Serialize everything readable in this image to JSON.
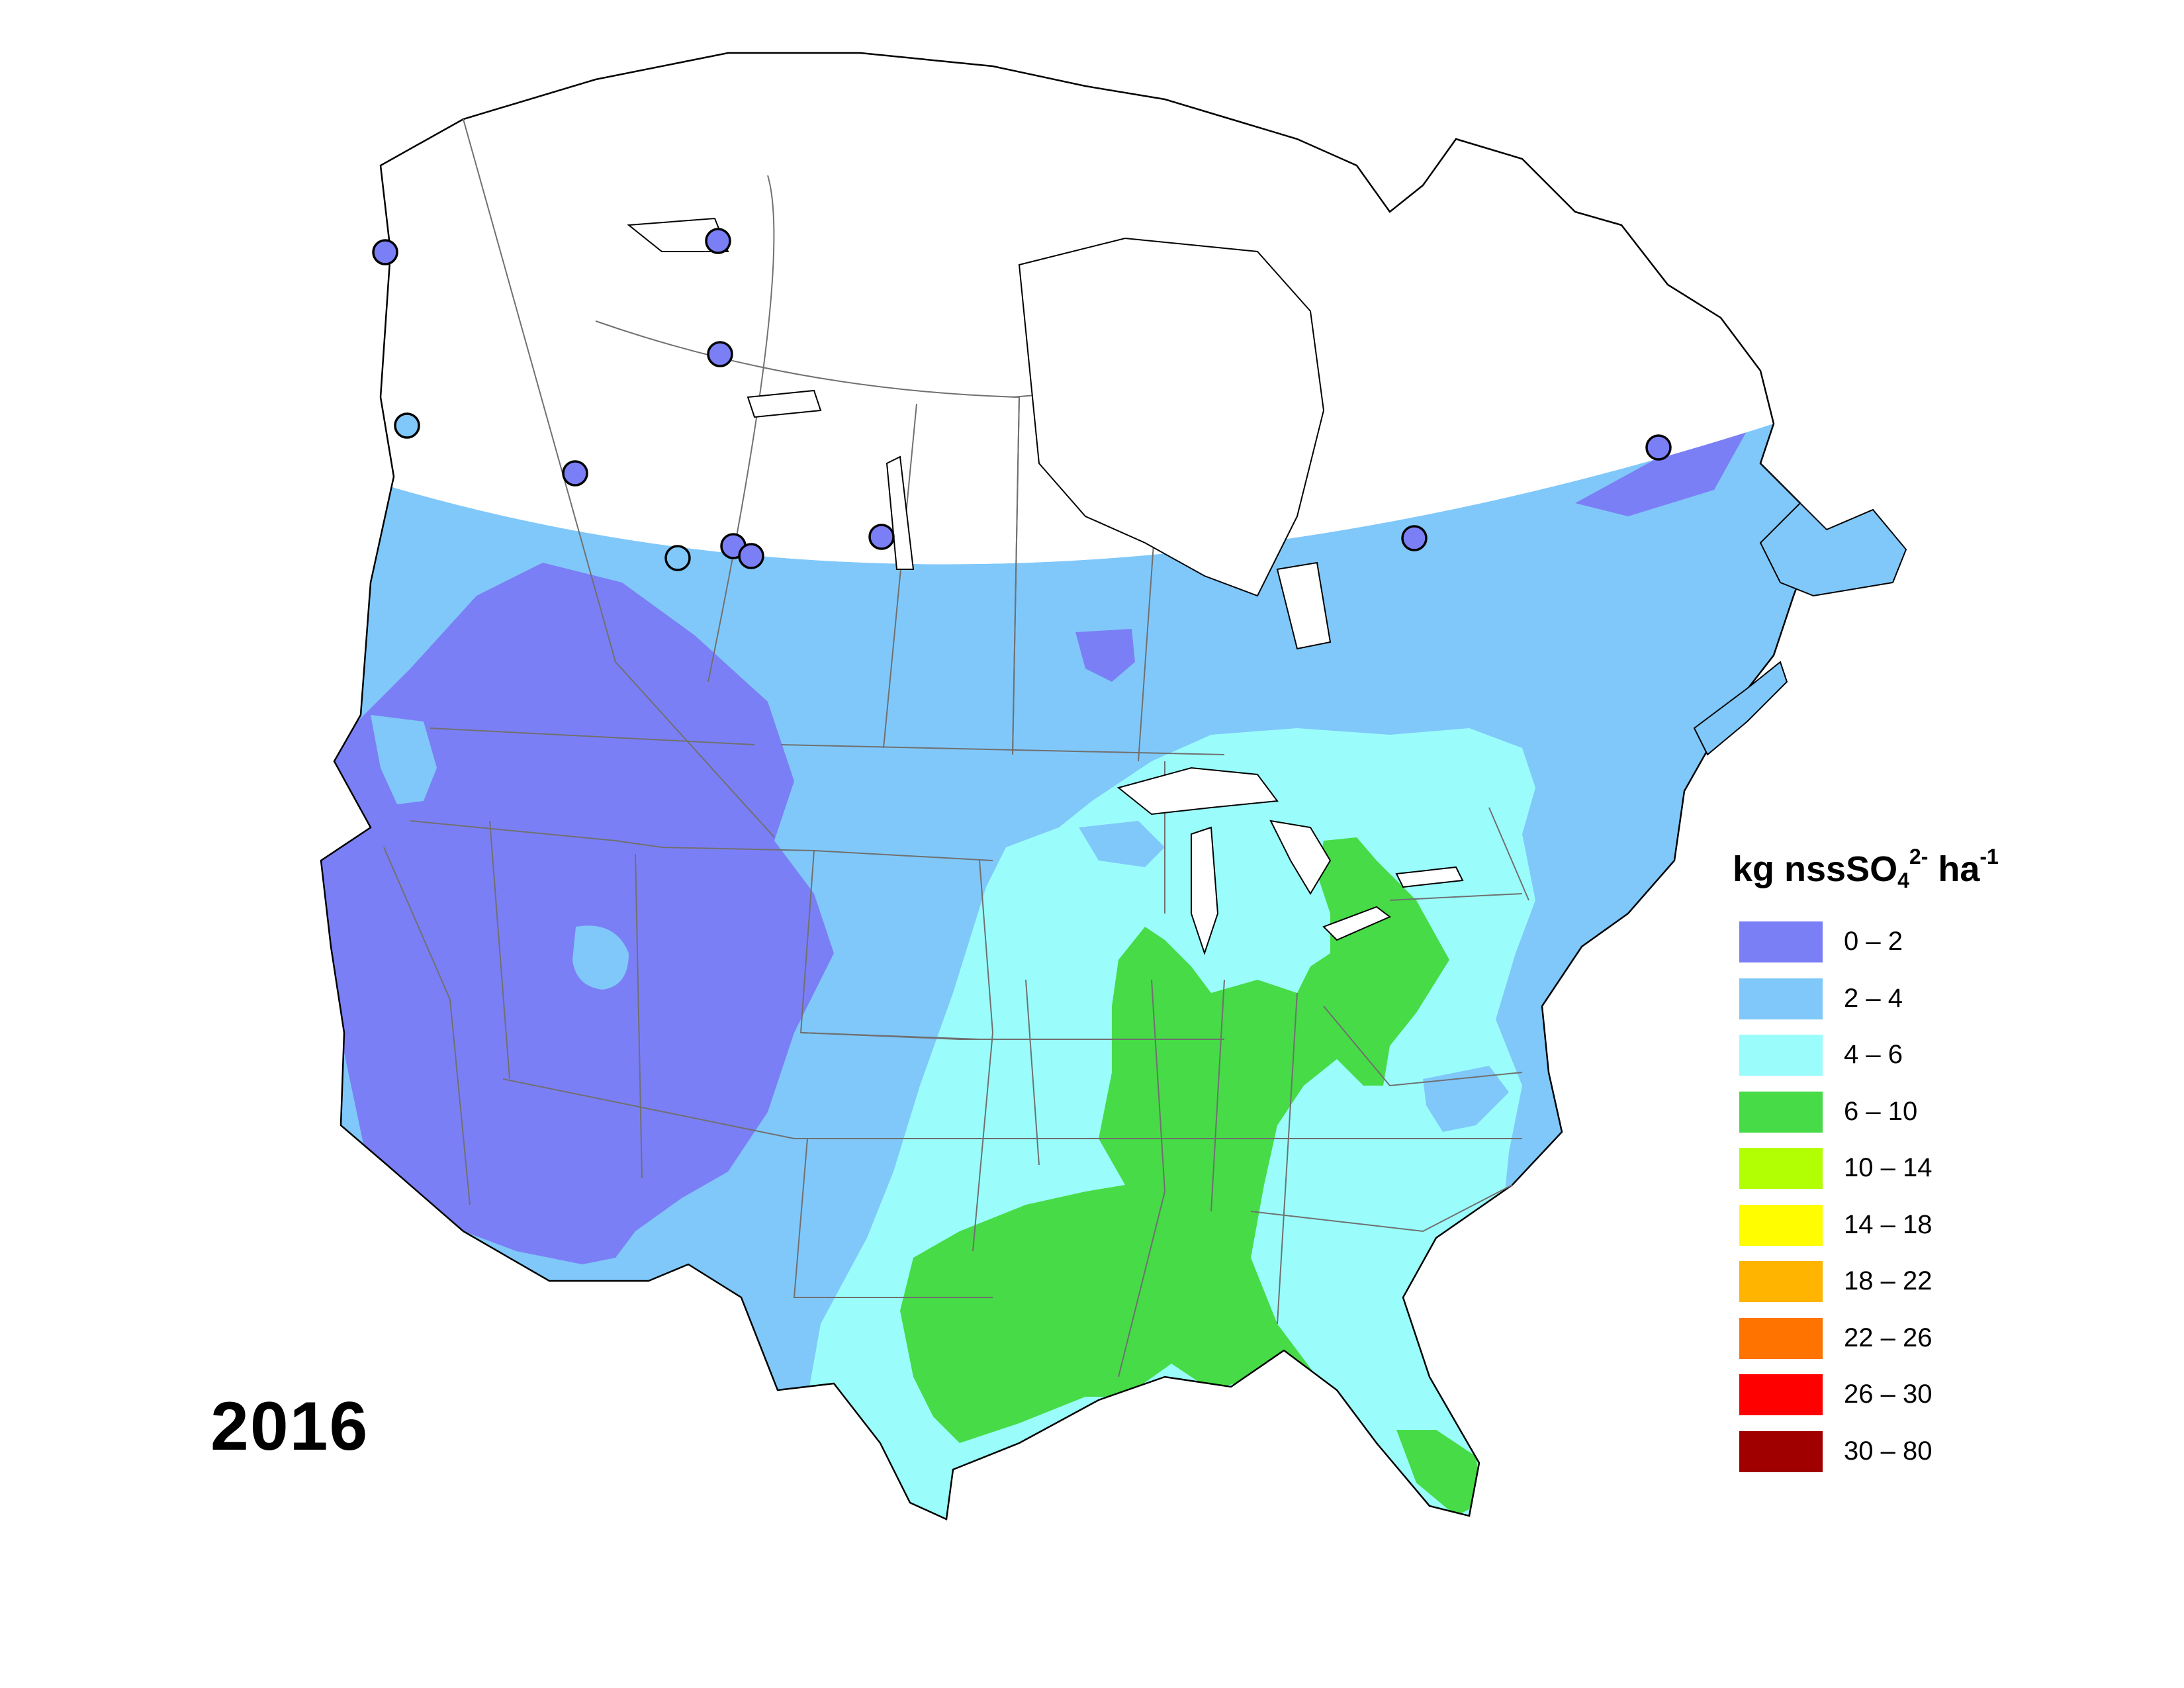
{
  "year": "2016",
  "legend": {
    "title_main": "kg nssSO",
    "title_sub": "4",
    "title_sup": "2-",
    "title_unit": " ha",
    "title_unit_sup": "-1",
    "items": [
      {
        "label": "0 – 2",
        "color": "#7b7ff5"
      },
      {
        "label": "2 – 4",
        "color": "#80c8fa"
      },
      {
        "label": "4 – 6",
        "color": "#9bfdfb"
      },
      {
        "label": "6 – 10",
        "color": "#47db47"
      },
      {
        "label": "10 – 14",
        "color": "#b2fe03"
      },
      {
        "label": "14 – 18",
        "color": "#fffd00"
      },
      {
        "label": "18 – 22",
        "color": "#ffb400"
      },
      {
        "label": "22 – 26",
        "color": "#ff7300"
      },
      {
        "label": "26 – 30",
        "color": "#ff0000"
      },
      {
        "label": "30 – 80",
        "color": "#a00000"
      }
    ]
  },
  "stations": [
    {
      "range": "0 – 2"
    },
    {
      "range": "0 – 2"
    },
    {
      "range": "0 – 2"
    },
    {
      "range": "2 – 4"
    },
    {
      "range": "0 – 2"
    },
    {
      "range": "2 – 4"
    },
    {
      "range": "0 – 2"
    },
    {
      "range": "0 – 2"
    },
    {
      "range": "0 – 2"
    },
    {
      "range": "0 – 2"
    },
    {
      "range": "0 – 2"
    }
  ]
}
